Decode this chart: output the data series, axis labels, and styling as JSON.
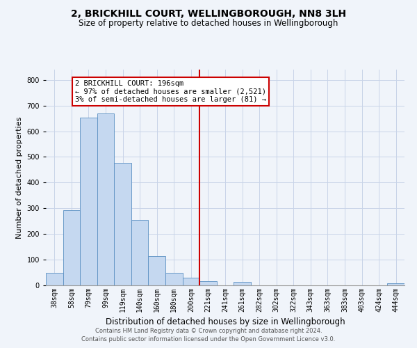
{
  "title": "2, BRICKHILL COURT, WELLINGBOROUGH, NN8 3LH",
  "subtitle": "Size of property relative to detached houses in Wellingborough",
  "xlabel": "Distribution of detached houses by size in Wellingborough",
  "ylabel": "Number of detached properties",
  "bar_labels": [
    "38sqm",
    "58sqm",
    "79sqm",
    "99sqm",
    "119sqm",
    "140sqm",
    "160sqm",
    "180sqm",
    "200sqm",
    "221sqm",
    "241sqm",
    "261sqm",
    "282sqm",
    "302sqm",
    "322sqm",
    "343sqm",
    "363sqm",
    "383sqm",
    "403sqm",
    "424sqm",
    "444sqm"
  ],
  "bar_values": [
    48,
    293,
    652,
    668,
    478,
    254,
    114,
    49,
    30,
    17,
    1,
    13,
    1,
    1,
    1,
    1,
    1,
    1,
    1,
    1,
    7
  ],
  "bar_color": "#c5d8f0",
  "bar_edge_color": "#5a8fc2",
  "vline_x": 8.5,
  "vline_color": "#cc0000",
  "annotation_title": "2 BRICKHILL COURT: 196sqm",
  "annotation_line1": "← 97% of detached houses are smaller (2,521)",
  "annotation_line2": "3% of semi-detached houses are larger (81) →",
  "annotation_box_edge": "#cc0000",
  "ylim": [
    0,
    840
  ],
  "yticks": [
    0,
    100,
    200,
    300,
    400,
    500,
    600,
    700,
    800
  ],
  "footer1": "Contains HM Land Registry data © Crown copyright and database right 2024.",
  "footer2": "Contains public sector information licensed under the Open Government Licence v3.0.",
  "bg_color": "#f0f4fa",
  "grid_color": "#c8d4e8",
  "title_fontsize": 10,
  "subtitle_fontsize": 8.5,
  "xlabel_fontsize": 8.5,
  "ylabel_fontsize": 8,
  "tick_fontsize": 7,
  "annotation_fontsize": 7.5,
  "footer_fontsize": 6
}
